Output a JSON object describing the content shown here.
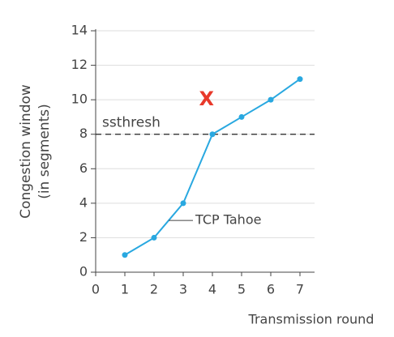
{
  "chart_data": {
    "type": "line",
    "x_label": "Transmission round",
    "y_label": [
      "Congestion window",
      "(in segments)"
    ],
    "x": [
      1,
      2,
      3,
      4,
      5,
      6,
      7
    ],
    "series": [
      {
        "name": "TCP Tahoe",
        "color": "#29a8e0",
        "values": [
          1,
          2,
          4,
          8,
          9,
          10,
          11.2
        ]
      }
    ],
    "xlim": [
      0,
      7.5
    ],
    "xticks": [
      0,
      1,
      2,
      3,
      4,
      5,
      6,
      7
    ],
    "ylim": [
      0,
      14
    ],
    "yticks": [
      0,
      2,
      4,
      6,
      8,
      10,
      12,
      14
    ],
    "grid": true,
    "threshold": {
      "label": "ssthresh",
      "value": 8
    },
    "loss_marker": {
      "text": "X",
      "color": "#e8392a"
    }
  }
}
